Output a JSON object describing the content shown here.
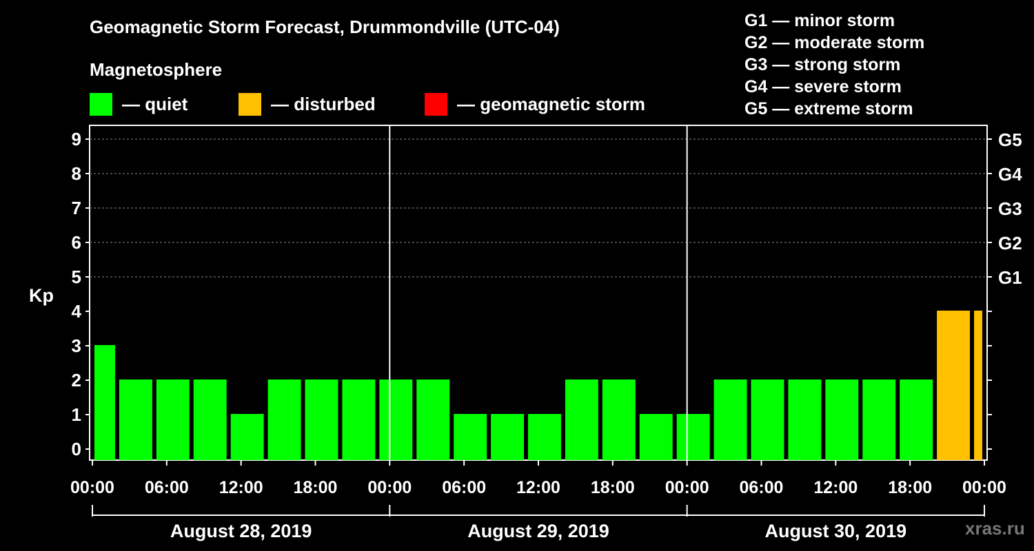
{
  "chart_data": {
    "type": "bar",
    "title": "Geomagnetic Storm Forecast, Drummondville (UTC-04)",
    "subtitle": "Magnetosphere",
    "ylabel": "Kp",
    "ylim": [
      0,
      9
    ],
    "yticks": [
      "0",
      "1",
      "2",
      "3",
      "4",
      "5",
      "6",
      "7",
      "8",
      "9"
    ],
    "right_ticks": [
      {
        "kp": 5,
        "label": "G1"
      },
      {
        "kp": 6,
        "label": "G2"
      },
      {
        "kp": 7,
        "label": "G3"
      },
      {
        "kp": 8,
        "label": "G4"
      },
      {
        "kp": 9,
        "label": "G5"
      }
    ],
    "xticks": [
      "00:00",
      "06:00",
      "12:00",
      "18:00",
      "00:00",
      "06:00",
      "12:00",
      "18:00",
      "00:00",
      "06:00",
      "12:00",
      "18:00",
      "00:00"
    ],
    "days": [
      "August 28, 2019",
      "August 29, 2019",
      "August 30, 2019"
    ],
    "x_hours_range": [
      0,
      72
    ],
    "bars": [
      {
        "start": 0,
        "end": 2,
        "kp": 3
      },
      {
        "start": 2,
        "end": 5,
        "kp": 2
      },
      {
        "start": 5,
        "end": 8,
        "kp": 2
      },
      {
        "start": 8,
        "end": 11,
        "kp": 2
      },
      {
        "start": 11,
        "end": 14,
        "kp": 1
      },
      {
        "start": 14,
        "end": 17,
        "kp": 2
      },
      {
        "start": 17,
        "end": 20,
        "kp": 2
      },
      {
        "start": 20,
        "end": 23,
        "kp": 2
      },
      {
        "start": 23,
        "end": 26,
        "kp": 2
      },
      {
        "start": 26,
        "end": 29,
        "kp": 2
      },
      {
        "start": 29,
        "end": 32,
        "kp": 1
      },
      {
        "start": 32,
        "end": 35,
        "kp": 1
      },
      {
        "start": 35,
        "end": 38,
        "kp": 1
      },
      {
        "start": 38,
        "end": 41,
        "kp": 2
      },
      {
        "start": 41,
        "end": 44,
        "kp": 2
      },
      {
        "start": 44,
        "end": 47,
        "kp": 1
      },
      {
        "start": 47,
        "end": 50,
        "kp": 1
      },
      {
        "start": 50,
        "end": 53,
        "kp": 2
      },
      {
        "start": 53,
        "end": 56,
        "kp": 2
      },
      {
        "start": 56,
        "end": 59,
        "kp": 2
      },
      {
        "start": 59,
        "end": 62,
        "kp": 2
      },
      {
        "start": 62,
        "end": 65,
        "kp": 2
      },
      {
        "start": 65,
        "end": 68,
        "kp": 2
      },
      {
        "start": 68,
        "end": 71,
        "kp": 4
      },
      {
        "start": 71,
        "end": 72,
        "kp": 4
      }
    ],
    "level_colors": {
      "quiet": "#00ff00",
      "disturbed": "#ffc000",
      "storm": "#ff0000"
    },
    "legend": [
      {
        "label": "— quiet",
        "color": "#00ff00"
      },
      {
        "label": "— disturbed",
        "color": "#ffc000"
      },
      {
        "label": "— geomagnetic storm",
        "color": "#ff0000"
      }
    ],
    "g_scale": [
      "G1 — minor storm",
      "G2 — moderate storm",
      "G3 — strong storm",
      "G4 — severe storm",
      "G5 — extreme storm"
    ],
    "watermark": "xras.ru"
  }
}
